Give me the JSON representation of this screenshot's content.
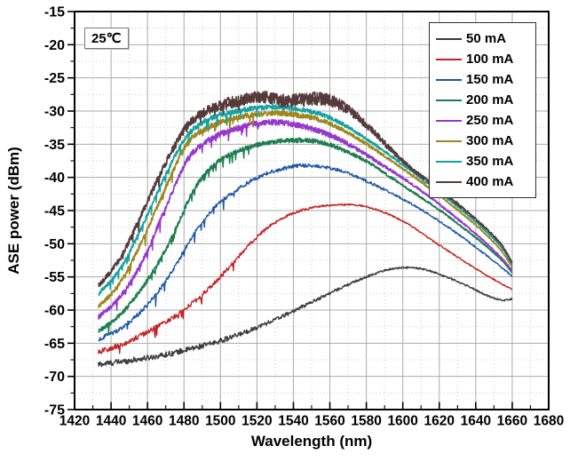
{
  "annotation": {
    "text": "25℃"
  },
  "chart_data": {
    "type": "line",
    "title": "",
    "xlabel": "Wavelength (nm)",
    "ylabel": "ASE power (dBm)",
    "xlim": [
      1420,
      1680
    ],
    "ylim": [
      -75,
      -15
    ],
    "x_major_ticks": [
      1420,
      1440,
      1460,
      1480,
      1500,
      1520,
      1540,
      1560,
      1580,
      1600,
      1620,
      1640,
      1660,
      1680
    ],
    "x_tick_labels": [
      "1420",
      "1440",
      "1460",
      "1480",
      "1500",
      "1520",
      "1540",
      "1560",
      "1580",
      "1600",
      "1620",
      "1640",
      "1660",
      "1680"
    ],
    "y_major_ticks": [
      -15,
      -20,
      -25,
      -30,
      -35,
      -40,
      -45,
      -50,
      -55,
      -60,
      -65,
      -70,
      -75
    ],
    "y_tick_labels": [
      "-15",
      "-20",
      "-25",
      "-30",
      "-35",
      "-40",
      "-45",
      "-50",
      "-55",
      "-60",
      "-65",
      "-70",
      "-75"
    ],
    "x_minor_step": 10,
    "y_minor_step": 2.5,
    "grid": {
      "major": true,
      "minor": true
    },
    "legend_position": "top-right",
    "style": {
      "frame": "#000000",
      "major_grid": "#ababab",
      "minor_grid": "#cccccc",
      "tick": "#000000",
      "text": "#000000",
      "background": "#ffffff"
    },
    "series": [
      {
        "name": "50 mA",
        "color": "#3b3b3b",
        "width": 1.4,
        "passes": 1,
        "spikes": false,
        "points": [
          [
            1433,
            -68.2
          ],
          [
            1445,
            -67.8
          ],
          [
            1460,
            -67.2
          ],
          [
            1475,
            -66.4
          ],
          [
            1490,
            -65.4
          ],
          [
            1505,
            -64.2
          ],
          [
            1520,
            -62.6
          ],
          [
            1535,
            -60.8
          ],
          [
            1550,
            -58.8
          ],
          [
            1565,
            -56.8
          ],
          [
            1580,
            -55.0
          ],
          [
            1592,
            -53.9
          ],
          [
            1602,
            -53.6
          ],
          [
            1612,
            -53.9
          ],
          [
            1622,
            -54.8
          ],
          [
            1635,
            -56.3
          ],
          [
            1648,
            -58.0
          ],
          [
            1656,
            -58.5
          ],
          [
            1660,
            -58.3
          ]
        ],
        "noise": [
          [
            1433,
            0.45
          ],
          [
            1500,
            0.38
          ],
          [
            1550,
            0.25
          ],
          [
            1590,
            0.14
          ],
          [
            1660,
            0.12
          ]
        ]
      },
      {
        "name": "100 mA",
        "color": "#c42225",
        "width": 1.4,
        "passes": 1,
        "spikes": true,
        "points": [
          [
            1433,
            -66.3
          ],
          [
            1445,
            -65.3
          ],
          [
            1460,
            -63.3
          ],
          [
            1475,
            -60.9
          ],
          [
            1490,
            -57.7
          ],
          [
            1505,
            -53.5
          ],
          [
            1518,
            -49.5
          ],
          [
            1530,
            -46.8
          ],
          [
            1542,
            -45.2
          ],
          [
            1554,
            -44.4
          ],
          [
            1566,
            -44.1
          ],
          [
            1578,
            -44.3
          ],
          [
            1590,
            -45.3
          ],
          [
            1602,
            -46.9
          ],
          [
            1615,
            -49.3
          ],
          [
            1630,
            -52.0
          ],
          [
            1645,
            -54.6
          ],
          [
            1656,
            -56.3
          ],
          [
            1660,
            -56.9
          ]
        ],
        "noise": [
          [
            1433,
            0.4
          ],
          [
            1500,
            0.32
          ],
          [
            1540,
            0.18
          ],
          [
            1580,
            0.12
          ],
          [
            1660,
            0.1
          ]
        ]
      },
      {
        "name": "150 mA",
        "color": "#1f57a5",
        "width": 1.4,
        "passes": 1,
        "spikes": true,
        "points": [
          [
            1433,
            -64.5
          ],
          [
            1445,
            -62.8
          ],
          [
            1460,
            -59.2
          ],
          [
            1472,
            -54.8
          ],
          [
            1486,
            -48.3
          ],
          [
            1498,
            -44.2
          ],
          [
            1510,
            -41.7
          ],
          [
            1522,
            -39.8
          ],
          [
            1534,
            -38.7
          ],
          [
            1546,
            -38.2
          ],
          [
            1558,
            -38.5
          ],
          [
            1570,
            -39.4
          ],
          [
            1582,
            -40.8
          ],
          [
            1594,
            -42.4
          ],
          [
            1606,
            -44.2
          ],
          [
            1620,
            -46.6
          ],
          [
            1634,
            -49.3
          ],
          [
            1648,
            -52.2
          ],
          [
            1656,
            -54.0
          ],
          [
            1660,
            -54.9
          ]
        ],
        "noise": [
          [
            1433,
            0.35
          ],
          [
            1500,
            0.3
          ],
          [
            1550,
            0.28
          ],
          [
            1600,
            0.16
          ],
          [
            1660,
            0.12
          ]
        ]
      },
      {
        "name": "200 mA",
        "color": "#1e7d50",
        "width": 1.4,
        "passes": 2,
        "spikes": true,
        "points": [
          [
            1433,
            -63.2
          ],
          [
            1445,
            -60.7
          ],
          [
            1460,
            -55.5
          ],
          [
            1472,
            -49.8
          ],
          [
            1486,
            -41.6
          ],
          [
            1498,
            -37.8
          ],
          [
            1510,
            -36.0
          ],
          [
            1522,
            -35.0
          ],
          [
            1534,
            -34.5
          ],
          [
            1546,
            -34.4
          ],
          [
            1558,
            -34.9
          ],
          [
            1570,
            -36.2
          ],
          [
            1582,
            -37.9
          ],
          [
            1594,
            -40.1
          ],
          [
            1606,
            -42.3
          ],
          [
            1620,
            -44.9
          ],
          [
            1634,
            -47.8
          ],
          [
            1648,
            -50.9
          ],
          [
            1656,
            -53.0
          ],
          [
            1660,
            -54.4
          ]
        ],
        "noise": [
          [
            1433,
            0.35
          ],
          [
            1500,
            0.35
          ],
          [
            1555,
            0.35
          ],
          [
            1600,
            0.18
          ],
          [
            1660,
            0.12
          ]
        ]
      },
      {
        "name": "250 mA",
        "color": "#9438cc",
        "width": 1.4,
        "passes": 2,
        "spikes": true,
        "points": [
          [
            1433,
            -61.1
          ],
          [
            1445,
            -58.0
          ],
          [
            1458,
            -52.2
          ],
          [
            1470,
            -44.5
          ],
          [
            1482,
            -37.3
          ],
          [
            1494,
            -34.3
          ],
          [
            1506,
            -32.9
          ],
          [
            1518,
            -32.0
          ],
          [
            1528,
            -31.7
          ],
          [
            1540,
            -32.0
          ],
          [
            1552,
            -32.8
          ],
          [
            1564,
            -34.1
          ],
          [
            1576,
            -35.9
          ],
          [
            1588,
            -38.0
          ],
          [
            1600,
            -40.1
          ],
          [
            1614,
            -42.8
          ],
          [
            1628,
            -45.8
          ],
          [
            1642,
            -49.0
          ],
          [
            1653,
            -51.8
          ],
          [
            1660,
            -54.0
          ]
        ],
        "noise": [
          [
            1433,
            0.35
          ],
          [
            1495,
            0.45
          ],
          [
            1550,
            0.45
          ],
          [
            1600,
            0.2
          ],
          [
            1660,
            0.12
          ]
        ]
      },
      {
        "name": "300 mA",
        "color": "#9e861c",
        "width": 1.4,
        "passes": 2,
        "spikes": true,
        "points": [
          [
            1433,
            -59.6
          ],
          [
            1445,
            -55.9
          ],
          [
            1458,
            -49.0
          ],
          [
            1470,
            -41.5
          ],
          [
            1482,
            -34.8
          ],
          [
            1494,
            -32.4
          ],
          [
            1506,
            -31.2
          ],
          [
            1518,
            -30.6
          ],
          [
            1530,
            -30.3
          ],
          [
            1542,
            -30.6
          ],
          [
            1554,
            -31.3
          ],
          [
            1566,
            -32.7
          ],
          [
            1578,
            -34.6
          ],
          [
            1590,
            -36.8
          ],
          [
            1602,
            -39.1
          ],
          [
            1616,
            -41.9
          ],
          [
            1630,
            -44.9
          ],
          [
            1644,
            -48.2
          ],
          [
            1655,
            -51.4
          ],
          [
            1660,
            -53.6
          ]
        ],
        "noise": [
          [
            1433,
            0.35
          ],
          [
            1495,
            0.42
          ],
          [
            1550,
            0.38
          ],
          [
            1600,
            0.18
          ],
          [
            1660,
            0.12
          ]
        ]
      },
      {
        "name": "350 mA",
        "color": "#16a1a1",
        "width": 1.4,
        "passes": 2,
        "spikes": true,
        "points": [
          [
            1433,
            -57.6
          ],
          [
            1445,
            -53.8
          ],
          [
            1458,
            -46.8
          ],
          [
            1470,
            -39.6
          ],
          [
            1482,
            -33.6
          ],
          [
            1494,
            -31.2
          ],
          [
            1506,
            -30.2
          ],
          [
            1518,
            -29.6
          ],
          [
            1530,
            -29.4
          ],
          [
            1542,
            -29.7
          ],
          [
            1554,
            -30.4
          ],
          [
            1566,
            -31.8
          ],
          [
            1578,
            -33.8
          ],
          [
            1590,
            -36.1
          ],
          [
            1602,
            -38.5
          ],
          [
            1616,
            -41.4
          ],
          [
            1630,
            -44.4
          ],
          [
            1644,
            -47.7
          ],
          [
            1655,
            -50.9
          ],
          [
            1660,
            -53.2
          ]
        ],
        "noise": [
          [
            1433,
            0.3
          ],
          [
            1495,
            0.4
          ],
          [
            1550,
            0.35
          ],
          [
            1600,
            0.17
          ],
          [
            1660,
            0.12
          ]
        ]
      },
      {
        "name": "400 mA",
        "color": "#553a3b",
        "width": 1.5,
        "passes": 2,
        "spikes": true,
        "points": [
          [
            1433,
            -56.4
          ],
          [
            1445,
            -52.2
          ],
          [
            1458,
            -44.8
          ],
          [
            1470,
            -37.8
          ],
          [
            1482,
            -32.2
          ],
          [
            1494,
            -29.8
          ],
          [
            1506,
            -28.7
          ],
          [
            1516,
            -28.1
          ],
          [
            1524,
            -27.9
          ],
          [
            1534,
            -28.4
          ],
          [
            1544,
            -28.3
          ],
          [
            1554,
            -28.1
          ],
          [
            1562,
            -28.6
          ],
          [
            1572,
            -30.2
          ],
          [
            1582,
            -32.6
          ],
          [
            1592,
            -35.4
          ],
          [
            1602,
            -38.0
          ],
          [
            1616,
            -41.0
          ],
          [
            1630,
            -44.0
          ],
          [
            1644,
            -47.3
          ],
          [
            1655,
            -50.5
          ],
          [
            1660,
            -52.9
          ]
        ],
        "noise": [
          [
            1433,
            0.35
          ],
          [
            1480,
            0.6
          ],
          [
            1505,
            0.9
          ],
          [
            1535,
            1.0
          ],
          [
            1560,
            1.0
          ],
          [
            1580,
            0.6
          ],
          [
            1605,
            0.3
          ],
          [
            1660,
            0.15
          ]
        ]
      }
    ]
  }
}
